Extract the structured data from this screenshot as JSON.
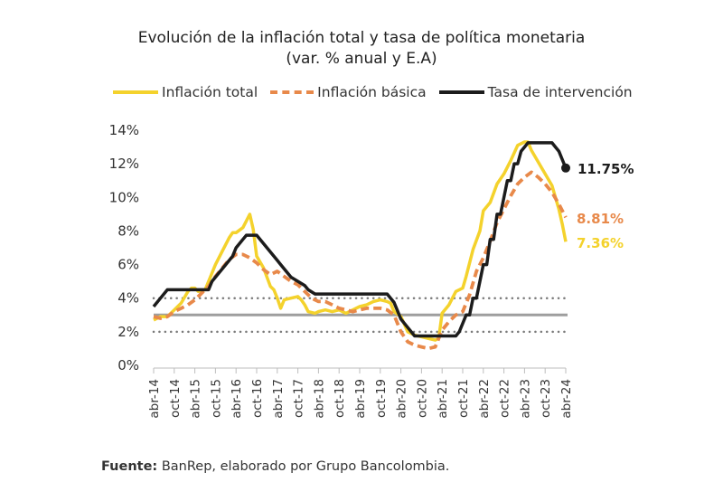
{
  "chart_data": {
    "type": "line",
    "title": "Evolución de la inflación total y tasa de política monetaria",
    "subtitle": "(var. % anual y E.A)",
    "xlabel": "",
    "ylabel": "",
    "ylim": [
      0,
      14
    ],
    "yticks": [
      "0%",
      "2%",
      "4%",
      "6%",
      "8%",
      "10%",
      "12%",
      "14%"
    ],
    "ytick_values": [
      0,
      2,
      4,
      6,
      8,
      10,
      12,
      14
    ],
    "x_start": "abr-14",
    "x_end": "abr-24",
    "x_unit": "months since abr-14",
    "categories": [
      "abr-14",
      "oct-14",
      "abr-15",
      "oct-15",
      "abr-16",
      "oct-16",
      "abr-17",
      "oct-17",
      "abr-18",
      "oct-18",
      "abr-19",
      "oct-19",
      "abr-20",
      "oct-20",
      "abr-21",
      "oct-21",
      "abr-22",
      "oct-22",
      "abr-23",
      "oct-23",
      "abr-24"
    ],
    "legend_position": "top",
    "grid": false,
    "reference_lines": [
      {
        "name": "meta-inflacion",
        "value": 3,
        "style": "solid",
        "color": "#9e9e9e"
      },
      {
        "name": "rango-superior",
        "value": 4,
        "style": "dotted",
        "color": "#7a7a7a"
      },
      {
        "name": "rango-inferior",
        "value": 2,
        "style": "dotted",
        "color": "#7a7a7a"
      }
    ],
    "series": [
      {
        "name": "Inflación total",
        "color": "#f4d22c",
        "style": "solid",
        "end_label": "7.36%",
        "points": [
          [
            0,
            2.7
          ],
          [
            2,
            2.9
          ],
          [
            4,
            2.9
          ],
          [
            6,
            3.3
          ],
          [
            8,
            3.7
          ],
          [
            10,
            4.4
          ],
          [
            11,
            4.6
          ],
          [
            12,
            4.6
          ],
          [
            13,
            4.4
          ],
          [
            15,
            4.5
          ],
          [
            16,
            5.0
          ],
          [
            18,
            6.0
          ],
          [
            20,
            6.8
          ],
          [
            22,
            7.6
          ],
          [
            23,
            7.9
          ],
          [
            24,
            7.9
          ],
          [
            26,
            8.2
          ],
          [
            27,
            8.6
          ],
          [
            28,
            9.0
          ],
          [
            29,
            8.1
          ],
          [
            30,
            6.5
          ],
          [
            32,
            5.8
          ],
          [
            34,
            4.7
          ],
          [
            35,
            4.5
          ],
          [
            36,
            4.0
          ],
          [
            37,
            3.4
          ],
          [
            38,
            3.9
          ],
          [
            40,
            4.0
          ],
          [
            42,
            4.1
          ],
          [
            43,
            3.9
          ],
          [
            44,
            3.6
          ],
          [
            45,
            3.2
          ],
          [
            47,
            3.1
          ],
          [
            48,
            3.2
          ],
          [
            50,
            3.3
          ],
          [
            52,
            3.2
          ],
          [
            54,
            3.3
          ],
          [
            56,
            3.1
          ],
          [
            57,
            3.2
          ],
          [
            58,
            3.3
          ],
          [
            60,
            3.5
          ],
          [
            62,
            3.6
          ],
          [
            64,
            3.8
          ],
          [
            66,
            3.9
          ],
          [
            68,
            3.8
          ],
          [
            69,
            3.7
          ],
          [
            70,
            3.2
          ],
          [
            72,
            2.9
          ],
          [
            74,
            2.0
          ],
          [
            76,
            1.8
          ],
          [
            78,
            1.7
          ],
          [
            80,
            1.6
          ],
          [
            82,
            1.5
          ],
          [
            83,
            1.6
          ],
          [
            84,
            3.1
          ],
          [
            86,
            3.6
          ],
          [
            88,
            4.4
          ],
          [
            90,
            4.6
          ],
          [
            91,
            5.3
          ],
          [
            93,
            6.9
          ],
          [
            95,
            8.0
          ],
          [
            96,
            9.2
          ],
          [
            98,
            9.7
          ],
          [
            100,
            10.8
          ],
          [
            102,
            11.4
          ],
          [
            104,
            12.2
          ],
          [
            106,
            13.1
          ],
          [
            108,
            13.3
          ],
          [
            109,
            13.3
          ],
          [
            110,
            12.8
          ],
          [
            112,
            12.1
          ],
          [
            114,
            11.4
          ],
          [
            116,
            10.7
          ],
          [
            118,
            9.3
          ],
          [
            119,
            8.4
          ],
          [
            120,
            7.36
          ]
        ]
      },
      {
        "name": "Inflación básica",
        "color": "#e8894a",
        "style": "dashed",
        "end_label": "8.81%",
        "points": [
          [
            0,
            2.9
          ],
          [
            2,
            2.8
          ],
          [
            4,
            2.9
          ],
          [
            6,
            3.2
          ],
          [
            8,
            3.4
          ],
          [
            10,
            3.6
          ],
          [
            12,
            3.9
          ],
          [
            14,
            4.3
          ],
          [
            16,
            4.7
          ],
          [
            18,
            5.3
          ],
          [
            20,
            5.8
          ],
          [
            22,
            6.3
          ],
          [
            24,
            6.6
          ],
          [
            26,
            6.6
          ],
          [
            28,
            6.4
          ],
          [
            30,
            6.1
          ],
          [
            32,
            5.7
          ],
          [
            34,
            5.4
          ],
          [
            36,
            5.6
          ],
          [
            38,
            5.3
          ],
          [
            40,
            5.0
          ],
          [
            42,
            4.8
          ],
          [
            44,
            4.4
          ],
          [
            46,
            4.0
          ],
          [
            48,
            3.8
          ],
          [
            50,
            3.8
          ],
          [
            52,
            3.6
          ],
          [
            54,
            3.4
          ],
          [
            56,
            3.3
          ],
          [
            58,
            3.2
          ],
          [
            60,
            3.3
          ],
          [
            62,
            3.4
          ],
          [
            64,
            3.4
          ],
          [
            66,
            3.4
          ],
          [
            68,
            3.3
          ],
          [
            70,
            3.0
          ],
          [
            72,
            2.0
          ],
          [
            74,
            1.4
          ],
          [
            76,
            1.2
          ],
          [
            78,
            1.1
          ],
          [
            80,
            1.0
          ],
          [
            82,
            1.1
          ],
          [
            84,
            2.1
          ],
          [
            86,
            2.6
          ],
          [
            88,
            3.0
          ],
          [
            90,
            3.2
          ],
          [
            92,
            4.2
          ],
          [
            94,
            5.6
          ],
          [
            96,
            6.4
          ],
          [
            98,
            7.4
          ],
          [
            100,
            8.5
          ],
          [
            102,
            9.3
          ],
          [
            104,
            10.1
          ],
          [
            106,
            10.8
          ],
          [
            108,
            11.2
          ],
          [
            110,
            11.5
          ],
          [
            112,
            11.2
          ],
          [
            114,
            10.8
          ],
          [
            116,
            10.3
          ],
          [
            118,
            9.6
          ],
          [
            120,
            8.81
          ]
        ]
      },
      {
        "name": "Tasa de intervención",
        "color": "#1c1c1c",
        "style": "solid",
        "end_label": "11.75%",
        "points": [
          [
            0,
            3.5
          ],
          [
            2,
            4.0
          ],
          [
            4,
            4.5
          ],
          [
            6,
            4.5
          ],
          [
            8,
            4.5
          ],
          [
            10,
            4.5
          ],
          [
            12,
            4.5
          ],
          [
            14,
            4.5
          ],
          [
            16,
            4.5
          ],
          [
            17,
            5.0
          ],
          [
            19,
            5.5
          ],
          [
            21,
            6.0
          ],
          [
            23,
            6.5
          ],
          [
            24,
            7.0
          ],
          [
            26,
            7.5
          ],
          [
            27,
            7.75
          ],
          [
            30,
            7.75
          ],
          [
            31,
            7.5
          ],
          [
            32,
            7.25
          ],
          [
            34,
            6.75
          ],
          [
            36,
            6.25
          ],
          [
            37,
            6.0
          ],
          [
            38,
            5.75
          ],
          [
            39,
            5.5
          ],
          [
            40,
            5.25
          ],
          [
            42,
            5.0
          ],
          [
            44,
            4.75
          ],
          [
            45,
            4.5
          ],
          [
            47,
            4.25
          ],
          [
            48,
            4.25
          ],
          [
            60,
            4.25
          ],
          [
            68,
            4.25
          ],
          [
            70,
            3.75
          ],
          [
            71,
            3.25
          ],
          [
            72,
            2.75
          ],
          [
            74,
            2.25
          ],
          [
            76,
            1.75
          ],
          [
            78,
            1.75
          ],
          [
            84,
            1.75
          ],
          [
            88,
            1.75
          ],
          [
            89,
            2.0
          ],
          [
            90,
            2.5
          ],
          [
            91,
            3.0
          ],
          [
            92,
            3.0
          ],
          [
            93,
            4.0
          ],
          [
            94,
            4.0
          ],
          [
            95,
            5.0
          ],
          [
            96,
            6.0
          ],
          [
            97,
            6.0
          ],
          [
            98,
            7.5
          ],
          [
            99,
            7.5
          ],
          [
            100,
            9.0
          ],
          [
            101,
            9.0
          ],
          [
            102,
            10.0
          ],
          [
            103,
            11.0
          ],
          [
            104,
            11.0
          ],
          [
            105,
            12.0
          ],
          [
            106,
            12.0
          ],
          [
            107,
            12.75
          ],
          [
            108,
            13.0
          ],
          [
            109,
            13.25
          ],
          [
            116,
            13.25
          ],
          [
            117,
            13.0
          ],
          [
            118,
            12.75
          ],
          [
            119,
            12.25
          ],
          [
            120,
            11.75
          ]
        ]
      }
    ]
  },
  "header": {
    "title": "Evolución de la inflación total y tasa de política monetaria",
    "subtitle": "(var. % anual y E.A)"
  },
  "legend": {
    "items": [
      "Inflación total",
      "Inflación básica",
      "Tasa de intervención"
    ]
  },
  "footer": {
    "source_label": "Fuente:",
    "source_text": " BanRep, elaborado por Grupo Bancolombia."
  }
}
